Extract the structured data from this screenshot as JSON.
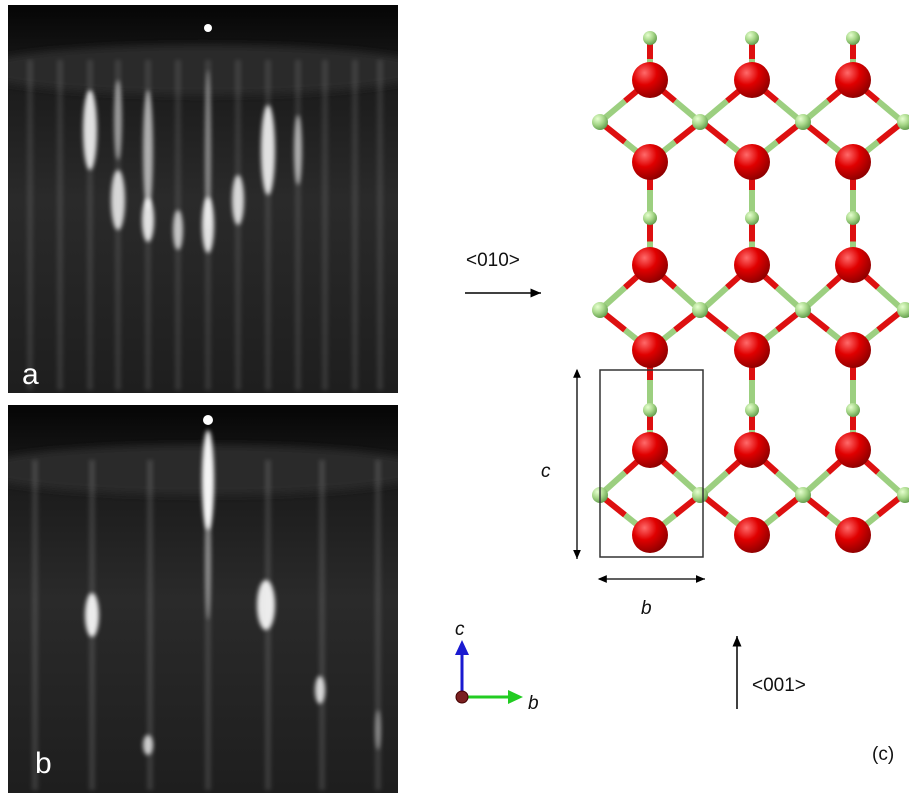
{
  "panels": {
    "a": {
      "label": "a"
    },
    "b": {
      "label": "b"
    },
    "c": {
      "label": "(c)",
      "direction_horizontal": "<010>",
      "direction_vertical": "<001>",
      "cell_height_label": "c",
      "cell_width_label": "b",
      "axis_up_label": "c",
      "axis_right_label": "b"
    }
  }
}
